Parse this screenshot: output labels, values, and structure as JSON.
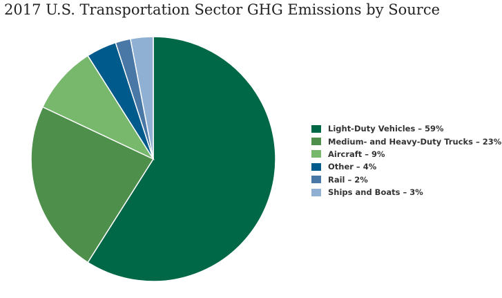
{
  "chart_data": {
    "type": "pie",
    "title": "2017 U.S. Transportation Sector GHG Emissions by Source",
    "slices": [
      {
        "label": "Light-Duty Vehicles – 59%",
        "value": 59,
        "color": "#006747"
      },
      {
        "label": "Medium- and Heavy-Duty Trucks – 23%",
        "value": 23,
        "color": "#4e8f4b"
      },
      {
        "label": "Aircraft – 9%",
        "value": 9,
        "color": "#77b86d"
      },
      {
        "label": "Other – 4%",
        "value": 4,
        "color": "#005a8b"
      },
      {
        "label": "Rail – 2%",
        "value": 2,
        "color": "#4a78a6"
      },
      {
        "label": "Ships and Boats – 3%",
        "value": 3,
        "color": "#8fb0d3"
      }
    ],
    "legend_position": "right"
  }
}
